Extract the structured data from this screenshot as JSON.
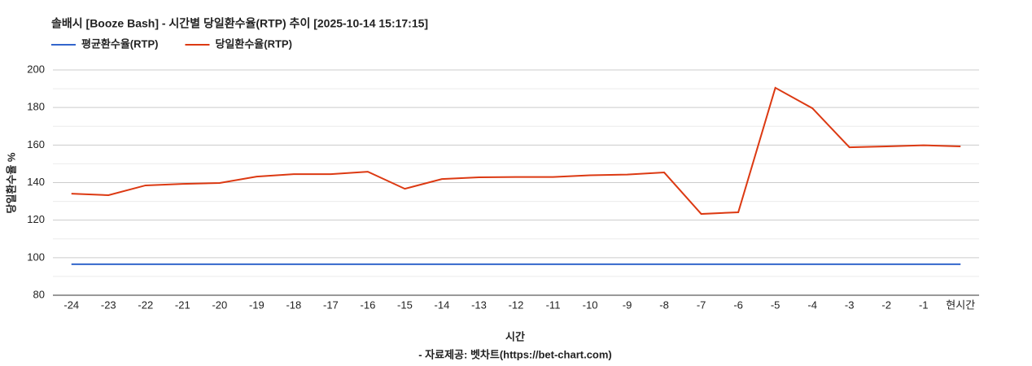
{
  "chart_data": {
    "type": "line",
    "title": "솔배시 [Booze Bash] - 시간별 당일환수율(RTP) 추이 [2025-10-14 15:17:15]",
    "x_label": "시간",
    "y_label": "당일환수율 %",
    "source": "- 자료제공: 벳차트(https://bet-chart.com)",
    "categories": [
      "-24",
      "-23",
      "-22",
      "-21",
      "-20",
      "-19",
      "-18",
      "-17",
      "-16",
      "-15",
      "-14",
      "-13",
      "-12",
      "-11",
      "-10",
      "-9",
      "-8",
      "-7",
      "-6",
      "-5",
      "-4",
      "-3",
      "-2",
      "-1",
      "현시간"
    ],
    "series": [
      {
        "name": "평균환수율(RTP)",
        "color": "#3366cc",
        "values": [
          96.5,
          96.5,
          96.5,
          96.5,
          96.5,
          96.5,
          96.5,
          96.5,
          96.5,
          96.5,
          96.5,
          96.5,
          96.5,
          96.5,
          96.5,
          96.5,
          96.5,
          96.5,
          96.5,
          96.5,
          96.5,
          96.5,
          96.5,
          96.5,
          96.5
        ]
      },
      {
        "name": "당일환수율(RTP)",
        "color": "#dc3912",
        "values": [
          134.1,
          133.3,
          138.5,
          139.3,
          139.8,
          143.2,
          144.5,
          144.5,
          145.8,
          136.7,
          141.9,
          142.8,
          143,
          143,
          143.9,
          144.3,
          145.4,
          123.3,
          124.2,
          190.5,
          179.6,
          158.8,
          159.3,
          159.9,
          159.3
        ]
      }
    ],
    "ylim": [
      80,
      200
    ],
    "yticks": [
      80,
      100,
      120,
      140,
      160,
      180,
      200
    ],
    "minor_yticks": [
      90,
      110,
      130,
      150,
      170,
      190
    ],
    "grid": true,
    "legend": "top-left"
  }
}
